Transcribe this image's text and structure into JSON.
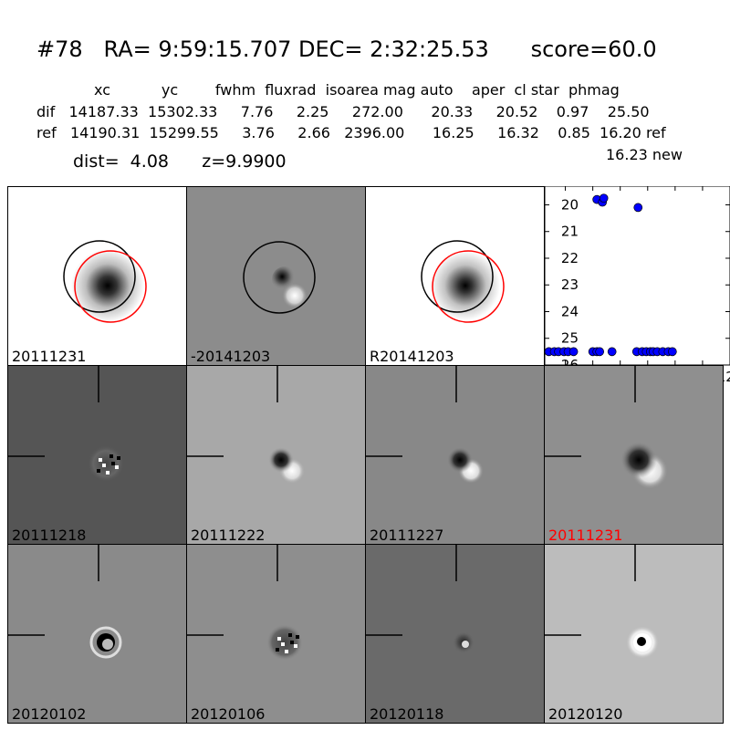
{
  "header": {
    "title": "#78   RA= 9:59:15.707 DEC= 2:32:25.53      score=60.0",
    "col_headers": "xc           yc        fwhm  fluxrad  isoarea mag auto    aper  cl star  phmag",
    "dif_row": "dif   14187.33  15302.33     7.76     2.25     272.00      20.33     20.52    0.97    25.50",
    "ref_row": "ref   14190.31  15299.55     3.76     2.66   2396.00      16.25     16.32    0.85  16.20 ref",
    "new_row": "16.23 new",
    "dist_z": "dist=  4.08      z=9.9900"
  },
  "panels_top": [
    {
      "label": "20111231",
      "bg": "#ffffff"
    },
    {
      "label": "-20141203",
      "bg": "#8c8c8c"
    },
    {
      "label": "R20141203",
      "bg": "#ffffff"
    }
  ],
  "panels_mid": [
    {
      "label": "20111218",
      "bg": "#555555",
      "highlight": false
    },
    {
      "label": "20111222",
      "bg": "#a8a8a8",
      "highlight": false
    },
    {
      "label": "20111227",
      "bg": "#888888",
      "highlight": false
    },
    {
      "label": "20111231",
      "bg": "#8f8f8f",
      "highlight": true
    }
  ],
  "panels_bot": [
    {
      "label": "20120102",
      "bg": "#8a8a8a"
    },
    {
      "label": "20120106",
      "bg": "#8e8e8e"
    },
    {
      "label": "20120118",
      "bg": "#6a6a6a"
    },
    {
      "label": "20120120",
      "bg": "#bcbcbc"
    }
  ],
  "colors": {
    "highlight_label": "#ff0000",
    "marker": "#0000ff",
    "ref_circle": "#ff0000"
  },
  "chart_data": {
    "type": "scatter",
    "xlim": [
      -15,
      120
    ],
    "ylim": [
      26,
      19.3
    ],
    "xticks": [
      0,
      20,
      40,
      60,
      80,
      100,
      120
    ],
    "yticks": [
      20,
      21,
      22,
      23,
      24,
      25,
      26
    ],
    "grid": false,
    "points": [
      {
        "x": -12,
        "y": 25.5
      },
      {
        "x": -8,
        "y": 25.5
      },
      {
        "x": -5,
        "y": 25.5
      },
      {
        "x": -1,
        "y": 25.5
      },
      {
        "x": 2,
        "y": 25.5
      },
      {
        "x": 6,
        "y": 25.5
      },
      {
        "x": 20,
        "y": 25.5
      },
      {
        "x": 23,
        "y": 25.5
      },
      {
        "x": 25,
        "y": 25.5
      },
      {
        "x": 34,
        "y": 25.5
      },
      {
        "x": 52,
        "y": 25.5
      },
      {
        "x": 56,
        "y": 25.5
      },
      {
        "x": 59,
        "y": 25.5
      },
      {
        "x": 62,
        "y": 25.5
      },
      {
        "x": 64,
        "y": 25.5
      },
      {
        "x": 67,
        "y": 25.5
      },
      {
        "x": 71,
        "y": 25.5
      },
      {
        "x": 75,
        "y": 25.5
      },
      {
        "x": 78,
        "y": 25.5
      },
      {
        "x": 23,
        "y": 19.8
      },
      {
        "x": 27,
        "y": 19.9
      },
      {
        "x": 28,
        "y": 19.75
      },
      {
        "x": 53,
        "y": 20.1
      }
    ]
  }
}
